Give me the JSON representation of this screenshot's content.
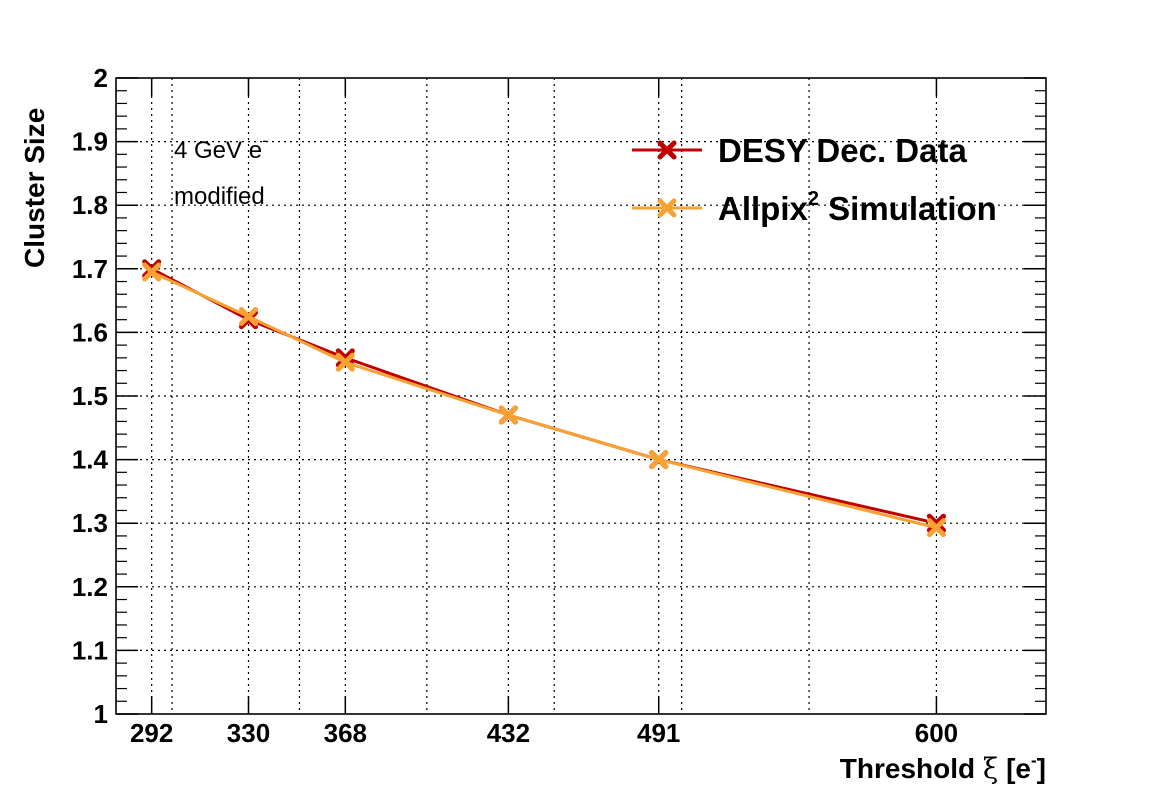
{
  "chart_data": {
    "type": "line",
    "x": [
      292,
      330,
      368,
      432,
      491,
      600
    ],
    "xlim": [
      278,
      643
    ],
    "ylim": [
      1.0,
      2.0
    ],
    "x_tick_labels": [
      "292",
      "330",
      "368",
      "432",
      "491",
      "600"
    ],
    "y_tick_labels": [
      "1",
      "1.1",
      "1.2",
      "1.3",
      "1.4",
      "1.5",
      "1.6",
      "1.7",
      "1.8",
      "1.9",
      "2"
    ],
    "x_grid_lines": [
      300,
      350,
      400,
      450,
      500,
      550
    ],
    "grid": true,
    "xlabel": {
      "main": "Threshold",
      "xi": "ξ",
      "unit_open": "[e",
      "unit_sup": "-",
      "unit_close": "]"
    },
    "ylabel": "Cluster Size",
    "annotations": {
      "beam_main": "4 GeV e",
      "beam_sup": "-",
      "note": "modified"
    },
    "legend_position": "top-right",
    "series": [
      {
        "name": "DESY Dec. Data",
        "label_parts": {
          "main": "DESY Dec. Data"
        },
        "color": "#c00000",
        "marker": "x-cross",
        "values": [
          1.7,
          1.62,
          1.56,
          1.47,
          1.4,
          1.3
        ]
      },
      {
        "name": "Allpix² Simulation",
        "label_parts": {
          "main": "Allpix",
          "sup": "2",
          "rest": " Simulation"
        },
        "color": "#f7a233",
        "marker": "x-cross",
        "values": [
          1.695,
          1.625,
          1.553,
          1.47,
          1.4,
          1.293
        ]
      }
    ]
  }
}
